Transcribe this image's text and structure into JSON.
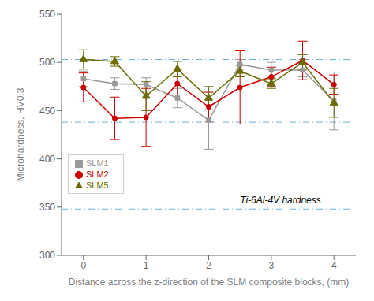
{
  "chart_data": {
    "type": "line",
    "xlabel": "Distance across the z-direction of the SLM composite blocks, (mm)",
    "ylabel": "Microhardness, HV0.3",
    "x": [
      0,
      0.5,
      1,
      1.5,
      2,
      2.5,
      3,
      3.5,
      4
    ],
    "xlim": [
      -0.35,
      4.35
    ],
    "xticks": [
      0,
      1,
      2,
      3,
      4
    ],
    "ylim": [
      300,
      550
    ],
    "yticks": [
      300,
      350,
      400,
      450,
      500,
      550
    ],
    "grid": false,
    "legend": "lower left",
    "series": [
      {
        "name": "SLM1",
        "color": "#999999",
        "marker": "square",
        "values": [
          483,
          478,
          477,
          463,
          440,
          498,
          492,
          492,
          460
        ],
        "errors": [
          8,
          6,
          7,
          10,
          30,
          5,
          8,
          7,
          30
        ]
      },
      {
        "name": "SLM2",
        "color": "#cc0000",
        "marker": "circle",
        "values": [
          474,
          442,
          443,
          478,
          454,
          474,
          485,
          502,
          477
        ],
        "errors": [
          15,
          22,
          30,
          15,
          15,
          38,
          10,
          20,
          10
        ]
      },
      {
        "name": "SLM5",
        "color": "#6b6b00",
        "marker": "triangle",
        "values": [
          503,
          501,
          465,
          493,
          463,
          491,
          478,
          500,
          458
        ],
        "errors": [
          10,
          5,
          15,
          8,
          12,
          6,
          5,
          8,
          15
        ]
      }
    ],
    "hlines": [
      {
        "value": 503,
        "color": "#6baed6",
        "line_style": "dashdot"
      },
      {
        "value": 438,
        "color": "#6baed6",
        "line_style": "dashdot"
      },
      {
        "value": 348,
        "color": "#6baed6",
        "line_style": "dashdot"
      }
    ],
    "annotations": [
      {
        "text": "Ti-6Al-4V hardness",
        "x": 2.5,
        "y": 354
      }
    ]
  }
}
